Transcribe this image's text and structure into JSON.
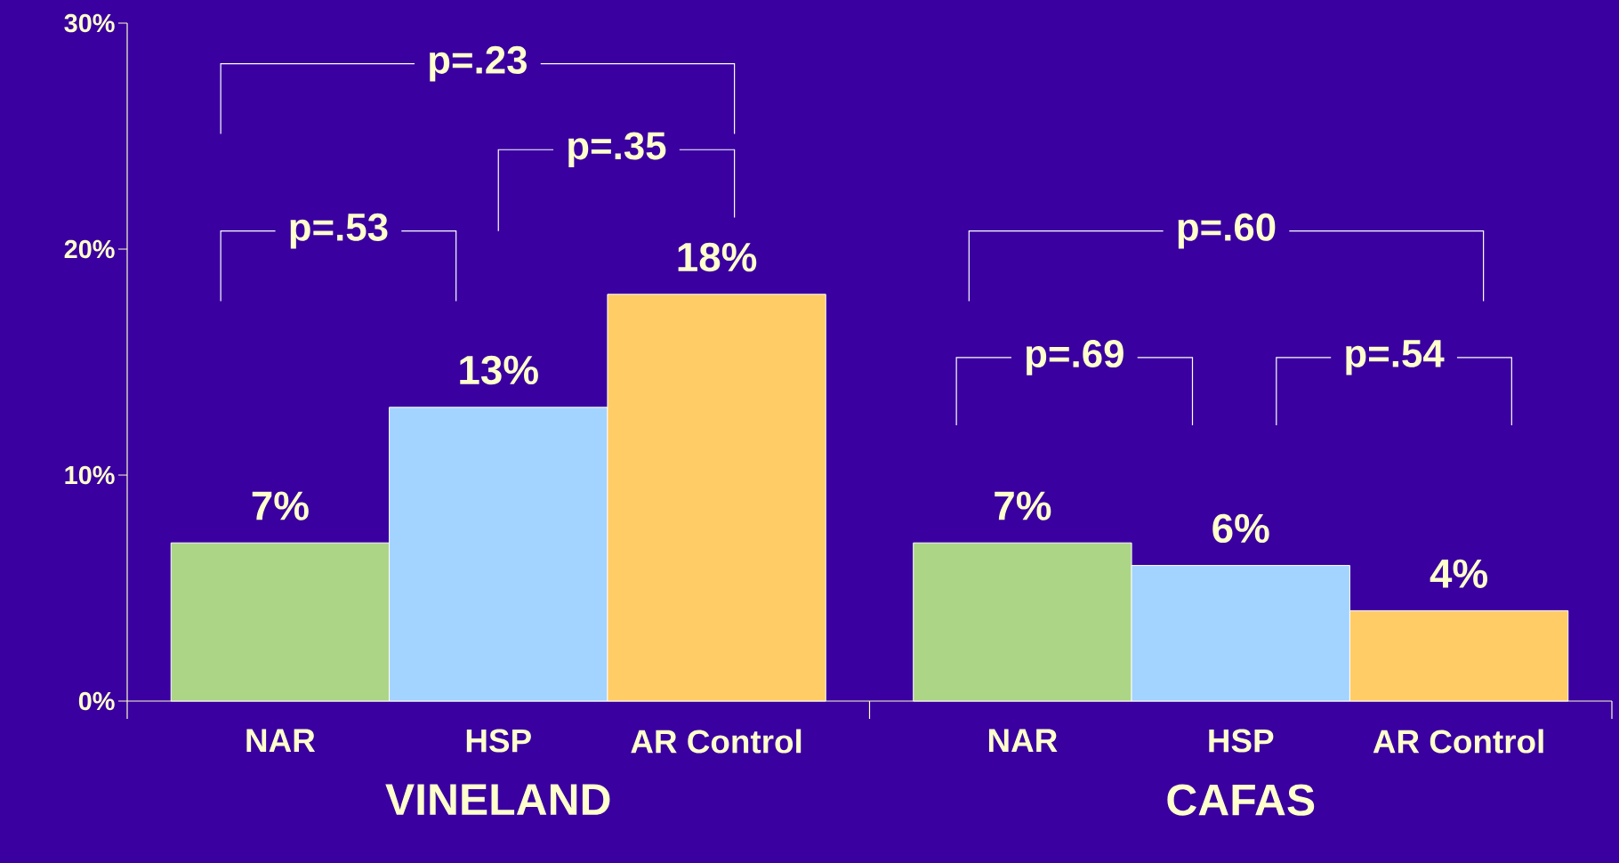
{
  "chart_data": {
    "type": "bar",
    "categories": [
      "VINELAND",
      "CAFAS"
    ],
    "series": [
      {
        "name": "NAR",
        "color": "#acd586",
        "values": [
          7,
          7
        ],
        "value_labels": [
          "7%",
          "7%"
        ]
      },
      {
        "name": "HSP",
        "color": "#a3d3ff",
        "values": [
          13,
          6
        ],
        "value_labels": [
          "13%",
          "6%"
        ]
      },
      {
        "name": "AR Control",
        "color": "#ffcc66",
        "values": [
          18,
          4
        ],
        "value_labels": [
          "18%",
          "4%"
        ]
      }
    ],
    "ylim": [
      0,
      30
    ],
    "yticks": [
      {
        "value": 0,
        "label": "0%"
      },
      {
        "value": 10,
        "label": "10%"
      },
      {
        "value": 20,
        "label": "20%"
      },
      {
        "value": 30,
        "label": "30%"
      }
    ],
    "annotations": [
      "p=.23",
      "p=.53",
      "p=.35",
      "p=.60",
      "p=.69",
      "p=.54"
    ]
  }
}
